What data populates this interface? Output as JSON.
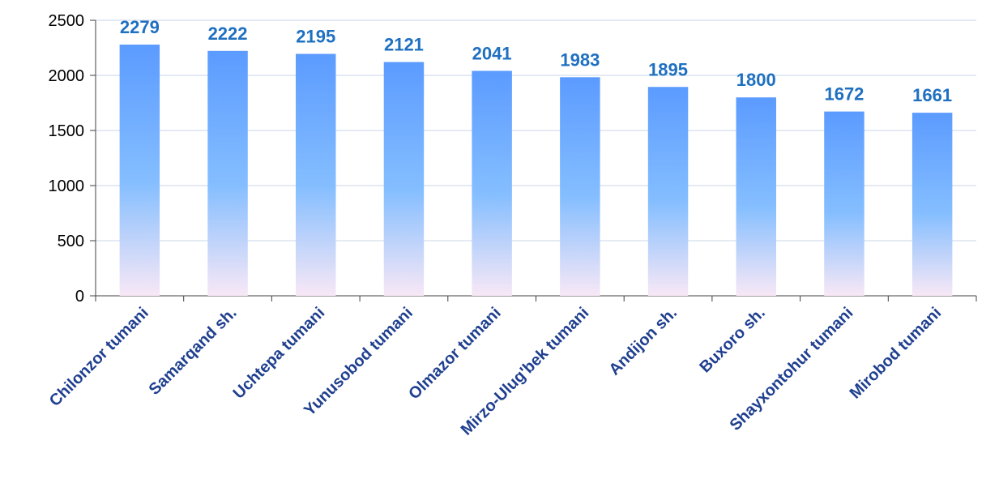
{
  "chart_data": {
    "type": "bar",
    "categories": [
      "Chilonzor  tumani",
      "Samarqand sh.",
      "Uchtepa tumani",
      "Yunusobod tumani",
      "Olmazor tumani",
      "Mirzo-Ulug'bek tumani",
      "Andijon sh.",
      "Buxoro sh.",
      "Shayxontohur tumani",
      "Mirobod tumani"
    ],
    "values": [
      2279,
      2222,
      2195,
      2121,
      2041,
      1983,
      1895,
      1800,
      1672,
      1661
    ],
    "data_labels": [
      "2279",
      "2222",
      "2195",
      "2121",
      "2041",
      "1983",
      "1895",
      "1800",
      "1672",
      "1661"
    ],
    "y_ticks": [
      "0",
      "500",
      "1000",
      "1500",
      "2000",
      "2500"
    ],
    "y_tick_values": [
      0,
      500,
      1000,
      1500,
      2000,
      2500
    ],
    "ylim": [
      0,
      2500
    ],
    "grid": true,
    "legend": "none",
    "colors": {
      "bar_top": "#5B9BFF",
      "bar_mid": "#85BEFF",
      "bar_bottom": "#F8E8F6",
      "data_label": "#1F70C1",
      "category_label": "#1F3F8F",
      "gridline": "#C8D6EA"
    }
  }
}
